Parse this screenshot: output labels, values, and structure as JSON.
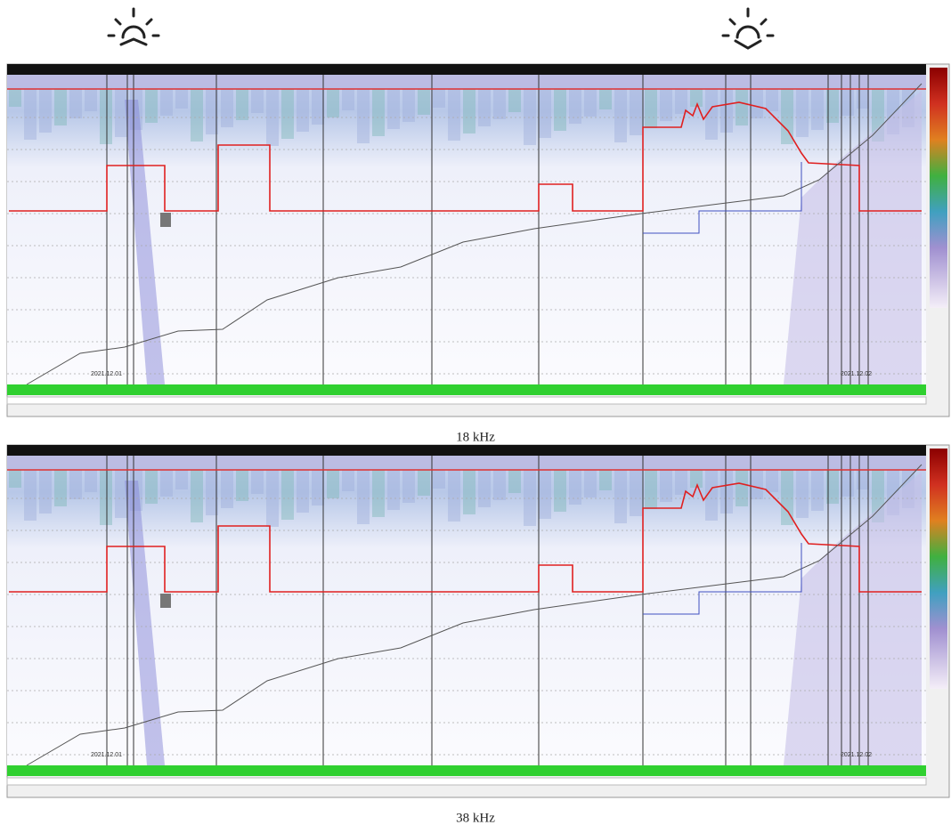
{
  "panels": [
    {
      "caption": "18 kHz",
      "start_date": "2021.12.01",
      "end_date": "2021.12.02"
    },
    {
      "caption": "38 kHz",
      "start_date": "2021.12.01",
      "end_date": "2021.12.02"
    }
  ]
}
